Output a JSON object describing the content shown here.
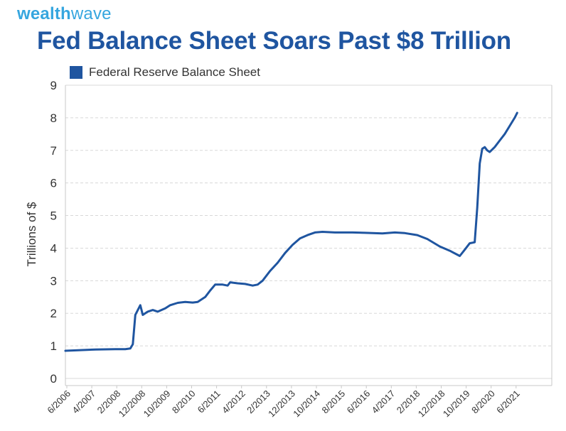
{
  "header": {
    "brand_part1": "wealth",
    "brand_part2": "wave",
    "title": "Fed Balance Sheet Soars Past $8 Trillion"
  },
  "colors": {
    "brand": "#36a6df",
    "title": "#1f55a0",
    "series": "#1f55a0",
    "grid": "#d8d8d8",
    "axis_text": "#333333"
  },
  "chart_data": {
    "type": "line",
    "title": "Fed Balance Sheet Soars Past $8 Trillion",
    "xlabel": "",
    "ylabel": "Trillions of $",
    "ylim": [
      0,
      9
    ],
    "yticks": [
      0,
      1,
      2,
      3,
      4,
      5,
      6,
      7,
      8,
      9
    ],
    "xlim": [
      "2006-06",
      "2021-12"
    ],
    "grid": true,
    "legend": "top-left",
    "x_tick_labels": [
      "6/2006",
      "4/2007",
      "2/2008",
      "12/2008",
      "10/2009",
      "8/2010",
      "6/2011",
      "4/2012",
      "2/2013",
      "12/2013",
      "10/2014",
      "8/2015",
      "6/2016",
      "4/2017",
      "2/2018",
      "12/2018",
      "10/2019",
      "8/2020",
      "6/2021"
    ],
    "series": [
      {
        "name": "Federal Reserve Balance Sheet",
        "points": [
          [
            "2006-06",
            0.85
          ],
          [
            "2007-06",
            0.89
          ],
          [
            "2008-02",
            0.9
          ],
          [
            "2008-06",
            0.9
          ],
          [
            "2008-08",
            0.92
          ],
          [
            "2008-09",
            1.05
          ],
          [
            "2008-10",
            1.95
          ],
          [
            "2008-12",
            2.25
          ],
          [
            "2009-01",
            1.95
          ],
          [
            "2009-03",
            2.05
          ],
          [
            "2009-05",
            2.1
          ],
          [
            "2009-07",
            2.05
          ],
          [
            "2009-10",
            2.15
          ],
          [
            "2009-12",
            2.25
          ],
          [
            "2010-03",
            2.32
          ],
          [
            "2010-06",
            2.35
          ],
          [
            "2010-09",
            2.33
          ],
          [
            "2010-11",
            2.35
          ],
          [
            "2011-02",
            2.5
          ],
          [
            "2011-04",
            2.7
          ],
          [
            "2011-06",
            2.88
          ],
          [
            "2011-09",
            2.88
          ],
          [
            "2011-11",
            2.85
          ],
          [
            "2011-12",
            2.95
          ],
          [
            "2012-03",
            2.92
          ],
          [
            "2012-06",
            2.9
          ],
          [
            "2012-09",
            2.85
          ],
          [
            "2012-11",
            2.88
          ],
          [
            "2013-01",
            3.0
          ],
          [
            "2013-04",
            3.3
          ],
          [
            "2013-07",
            3.55
          ],
          [
            "2013-10",
            3.85
          ],
          [
            "2014-01",
            4.1
          ],
          [
            "2014-04",
            4.3
          ],
          [
            "2014-07",
            4.4
          ],
          [
            "2014-10",
            4.48
          ],
          [
            "2015-01",
            4.5
          ],
          [
            "2015-06",
            4.48
          ],
          [
            "2016-01",
            4.48
          ],
          [
            "2016-06",
            4.47
          ],
          [
            "2017-01",
            4.45
          ],
          [
            "2017-06",
            4.48
          ],
          [
            "2017-10",
            4.46
          ],
          [
            "2018-03",
            4.4
          ],
          [
            "2018-07",
            4.28
          ],
          [
            "2018-12",
            4.05
          ],
          [
            "2019-04",
            3.92
          ],
          [
            "2019-08",
            3.76
          ],
          [
            "2019-10",
            3.95
          ],
          [
            "2019-12",
            4.15
          ],
          [
            "2020-02",
            4.18
          ],
          [
            "2020-03",
            5.25
          ],
          [
            "2020-04",
            6.6
          ],
          [
            "2020-05",
            7.05
          ],
          [
            "2020-06",
            7.1
          ],
          [
            "2020-07",
            7.0
          ],
          [
            "2020-08",
            6.95
          ],
          [
            "2020-10",
            7.1
          ],
          [
            "2020-12",
            7.3
          ],
          [
            "2021-02",
            7.5
          ],
          [
            "2021-04",
            7.75
          ],
          [
            "2021-06",
            8.0
          ],
          [
            "2021-07",
            8.15
          ]
        ]
      }
    ]
  }
}
